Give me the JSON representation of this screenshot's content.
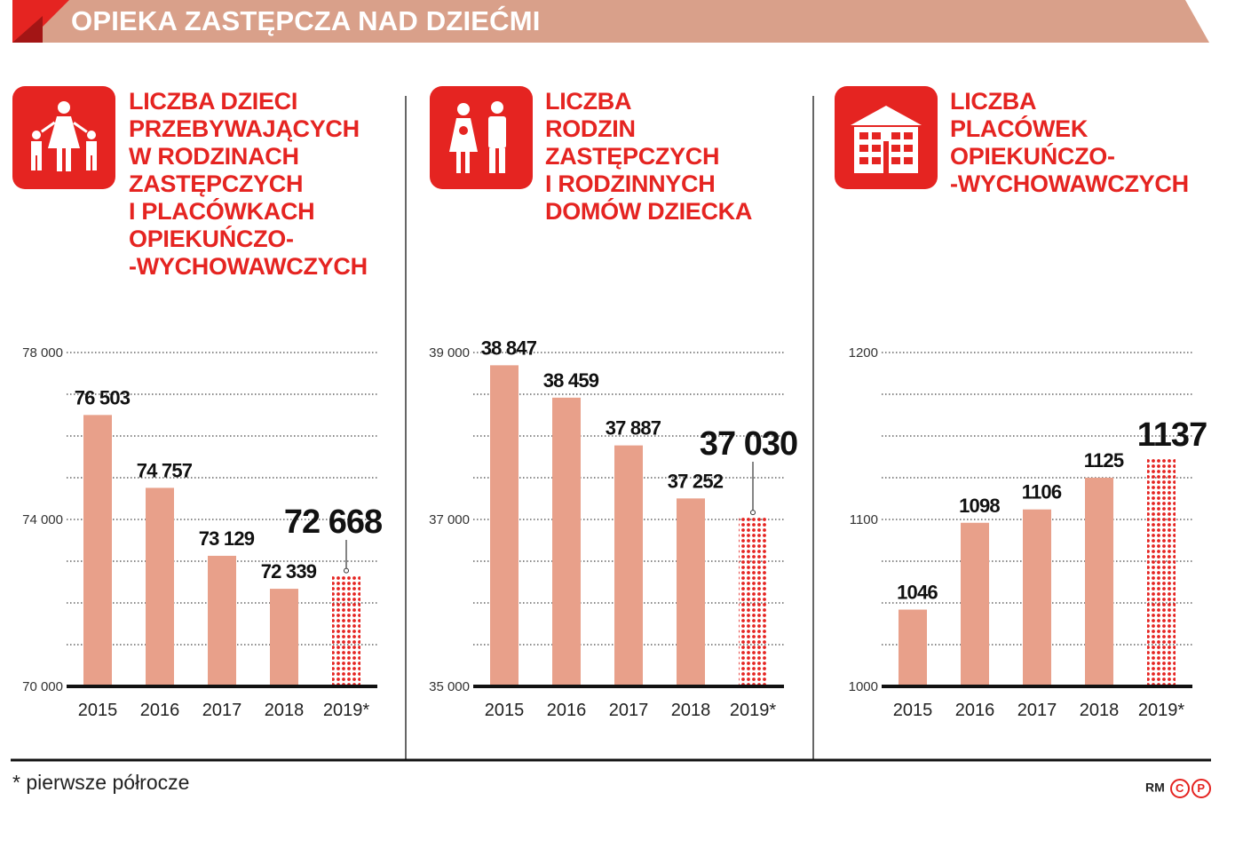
{
  "header": {
    "title": "OPIEKA ZASTĘPCZA NAD DZIEĆMI",
    "colors": {
      "band": "#d9a08a",
      "accent": "#e52421"
    }
  },
  "panels": [
    {
      "icon": "family-mother-children-icon",
      "title_lines": [
        "LICZBA DZIECI",
        "PRZEBYWAJĄCYCH",
        "W RODZINACH",
        "ZASTĘPCZYCH",
        "I PLACÓWKACH",
        "OPIEKUŃCZO-",
        "-WYCHOWAWCZYCH"
      ]
    },
    {
      "icon": "parents-with-baby-icon",
      "title_lines": [
        "LICZBA",
        "RODZIN",
        "ZASTĘPCZYCH",
        "I RODZINNYCH",
        "DOMÓW DZIECKA"
      ]
    },
    {
      "icon": "building-icon",
      "title_lines": [
        "LICZBA",
        "PLACÓWEK",
        "OPIEKUŃCZO-",
        "-WYCHOWAWCZYCH"
      ]
    }
  ],
  "chart_data": [
    {
      "type": "bar",
      "categories": [
        "2015",
        "2016",
        "2017",
        "2018",
        "2019*"
      ],
      "values": [
        76503,
        74757,
        73129,
        72339,
        72668
      ],
      "value_labels": [
        "76 503",
        "74 757",
        "73 129",
        "72 339",
        "72 668"
      ],
      "ylim": [
        70000,
        78000
      ],
      "yticks": [
        70000,
        74000,
        78000
      ],
      "ytick_labels": [
        "70 000",
        "74 000",
        "78 000"
      ],
      "grid_step": 1000,
      "grid": true,
      "bar_color": "#e8a08a",
      "highlight_color": "#e52421",
      "highlight_style": "dotted"
    },
    {
      "type": "bar",
      "categories": [
        "2015",
        "2016",
        "2017",
        "2018",
        "2019*"
      ],
      "values": [
        38847,
        38459,
        37887,
        37252,
        37030
      ],
      "value_labels": [
        "38 847",
        "38 459",
        "37 887",
        "37 252",
        "37 030"
      ],
      "ylim": [
        35000,
        39000
      ],
      "yticks": [
        35000,
        37000,
        39000
      ],
      "ytick_labels": [
        "35 000",
        "37 000",
        "39 000"
      ],
      "grid_step": 500,
      "grid": true,
      "bar_color": "#e8a08a",
      "highlight_color": "#e52421",
      "highlight_style": "dotted"
    },
    {
      "type": "bar",
      "categories": [
        "2015",
        "2016",
        "2017",
        "2018",
        "2019*"
      ],
      "values": [
        1046,
        1098,
        1106,
        1125,
        1137
      ],
      "value_labels": [
        "1046",
        "1098",
        "1106",
        "1125",
        "1137"
      ],
      "ylim": [
        1000,
        1200
      ],
      "yticks": [
        1000,
        1100,
        1200
      ],
      "ytick_labels": [
        "1000",
        "1100",
        "1200"
      ],
      "grid_step": 25,
      "grid": true,
      "bar_color": "#e8a08a",
      "highlight_color": "#e52421",
      "highlight_style": "dotted"
    }
  ],
  "footer": {
    "footnote": "* pierwsze półrocze",
    "credit": "RM",
    "copyright": "C",
    "phonogram": "P"
  }
}
